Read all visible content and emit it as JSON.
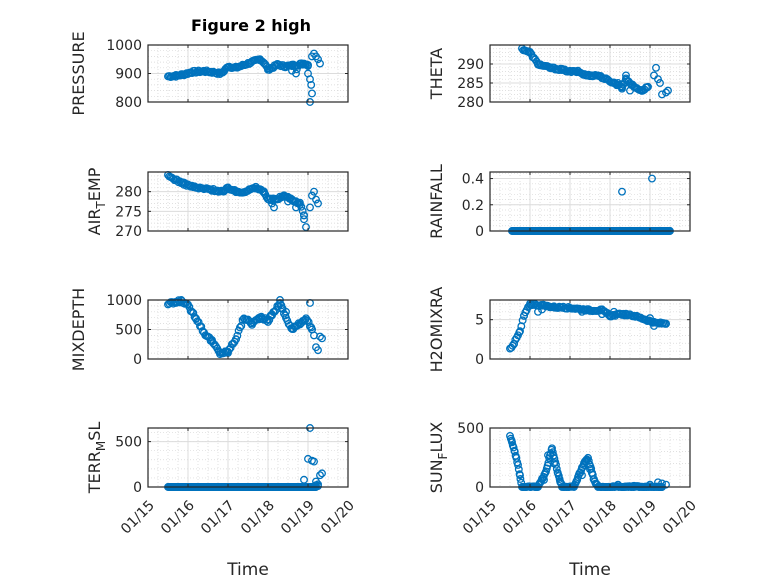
{
  "figure": {
    "title": "Figure 2 high",
    "time_label": "Time",
    "time_ticks": [
      "01/15",
      "01/16",
      "01/17",
      "01/18",
      "01/19",
      "01/20"
    ],
    "marker_color": "#0072BD"
  },
  "chart_data": [
    {
      "type": "scatter",
      "name": "PRESSURE",
      "ylabel": "PRESSURE",
      "ylim": [
        800,
        1000
      ],
      "yticks": [
        800,
        900,
        1000
      ],
      "xlim": [
        0,
        5
      ],
      "grid": true,
      "keys": [
        [
          0.5,
          890
        ],
        [
          0.7,
          892
        ],
        [
          0.9,
          897
        ],
        [
          1.1,
          905
        ],
        [
          1.4,
          908
        ],
        [
          1.6,
          905
        ],
        [
          1.8,
          900
        ],
        [
          1.9,
          908
        ],
        [
          2.0,
          925
        ],
        [
          2.2,
          920
        ],
        [
          2.4,
          930
        ],
        [
          2.6,
          940
        ],
        [
          2.8,
          950
        ],
        [
          2.9,
          938
        ],
        [
          3.0,
          915
        ],
        [
          3.1,
          920
        ],
        [
          3.25,
          932
        ],
        [
          3.4,
          925
        ],
        [
          3.6,
          928
        ],
        [
          3.8,
          932
        ],
        [
          3.9,
          935
        ],
        [
          4.0,
          930
        ]
      ],
      "jitter": 4,
      "step": 0.033,
      "extra": [
        [
          3.6,
          910
        ],
        [
          3.7,
          900
        ],
        [
          3.72,
          915
        ],
        [
          4.1,
          960
        ],
        [
          4.15,
          970
        ],
        [
          4.2,
          960
        ],
        [
          4.25,
          950
        ],
        [
          4.3,
          935
        ],
        [
          4.0,
          900
        ],
        [
          4.05,
          880
        ],
        [
          4.08,
          860
        ],
        [
          4.1,
          830
        ],
        [
          4.05,
          800
        ]
      ]
    },
    {
      "type": "scatter",
      "name": "THETA",
      "ylabel": "THETA",
      "ylim": [
        280,
        295
      ],
      "yticks": [
        280,
        285,
        290
      ],
      "xlim": [
        0,
        5
      ],
      "grid": true,
      "keys": [
        [
          0.8,
          294
        ],
        [
          1.0,
          293
        ],
        [
          1.2,
          290
        ],
        [
          1.5,
          289
        ],
        [
          1.8,
          288.5
        ],
        [
          2.0,
          288
        ],
        [
          2.2,
          288
        ],
        [
          2.4,
          287
        ],
        [
          2.7,
          287
        ],
        [
          2.9,
          286
        ],
        [
          3.1,
          285
        ],
        [
          3.3,
          284
        ],
        [
          3.4,
          286
        ],
        [
          3.6,
          284
        ],
        [
          3.8,
          283
        ],
        [
          3.95,
          284
        ]
      ],
      "jitter": 0.25,
      "step": 0.033,
      "extra": [
        [
          3.2,
          285
        ],
        [
          3.3,
          283.5
        ],
        [
          3.4,
          287
        ],
        [
          3.5,
          283
        ],
        [
          4.1,
          287
        ],
        [
          4.15,
          289
        ],
        [
          4.2,
          286
        ],
        [
          4.25,
          285
        ],
        [
          4.3,
          282
        ],
        [
          4.4,
          282.5
        ],
        [
          4.45,
          283
        ]
      ]
    },
    {
      "type": "scatter",
      "name": "AIR_TEMP",
      "ylabel": "AIR_TEMP",
      "ylim": [
        270,
        285
      ],
      "yticks": [
        270,
        275,
        280
      ],
      "xlim": [
        0,
        5
      ],
      "grid": true,
      "keys": [
        [
          0.5,
          284
        ],
        [
          0.9,
          282
        ],
        [
          1.2,
          281
        ],
        [
          1.6,
          280.5
        ],
        [
          1.9,
          280
        ],
        [
          2.0,
          281
        ],
        [
          2.2,
          280
        ],
        [
          2.4,
          280
        ],
        [
          2.7,
          281
        ],
        [
          2.9,
          280
        ],
        [
          3.0,
          278
        ],
        [
          3.2,
          278
        ],
        [
          3.4,
          279
        ],
        [
          3.6,
          278
        ],
        [
          3.8,
          277
        ],
        [
          3.9,
          274
        ]
      ],
      "jitter": 0.3,
      "step": 0.033,
      "extra": [
        [
          3.1,
          277
        ],
        [
          3.15,
          276
        ],
        [
          3.5,
          277.5
        ],
        [
          3.7,
          276
        ],
        [
          3.9,
          273
        ],
        [
          3.95,
          271
        ],
        [
          4.05,
          276
        ],
        [
          4.1,
          279
        ],
        [
          4.15,
          280
        ],
        [
          4.2,
          278
        ],
        [
          4.25,
          277
        ]
      ]
    },
    {
      "type": "scatter",
      "name": "RAINFALL",
      "ylabel": "RAINFALL",
      "ylim": [
        0,
        0.45
      ],
      "yticks": [
        0,
        0.2,
        0.4
      ],
      "xlim": [
        0,
        5
      ],
      "grid": true,
      "keys": [
        [
          0.55,
          0
        ],
        [
          4.5,
          0
        ]
      ],
      "jitter": 0,
      "step": 0.018,
      "extra": [
        [
          3.3,
          0.3
        ],
        [
          4.05,
          0.4
        ]
      ]
    },
    {
      "type": "scatter",
      "name": "MIXDEPTH",
      "ylabel": "MIXDEPTH",
      "ylim": [
        0,
        1000
      ],
      "yticks": [
        0,
        500,
        1000
      ],
      "xlim": [
        0,
        5
      ],
      "grid": true,
      "keys": [
        [
          0.5,
          930
        ],
        [
          0.7,
          960
        ],
        [
          0.85,
          990
        ],
        [
          1.0,
          900
        ],
        [
          1.2,
          700
        ],
        [
          1.4,
          450
        ],
        [
          1.6,
          300
        ],
        [
          1.8,
          100
        ],
        [
          2.0,
          120
        ],
        [
          2.2,
          350
        ],
        [
          2.4,
          700
        ],
        [
          2.6,
          600
        ],
        [
          2.8,
          700
        ],
        [
          3.0,
          650
        ],
        [
          3.1,
          750
        ],
        [
          3.3,
          950
        ],
        [
          3.45,
          700
        ],
        [
          3.6,
          500
        ],
        [
          3.8,
          600
        ],
        [
          3.95,
          700
        ],
        [
          4.1,
          500
        ]
      ],
      "jitter": 25,
      "step": 0.033,
      "extra": [
        [
          3.3,
          1000
        ],
        [
          3.35,
          850
        ],
        [
          3.45,
          800
        ],
        [
          4.05,
          950
        ],
        [
          4.1,
          500
        ],
        [
          4.15,
          400
        ],
        [
          4.2,
          200
        ],
        [
          4.25,
          150
        ],
        [
          4.3,
          380
        ],
        [
          4.35,
          350
        ]
      ]
    },
    {
      "type": "scatter",
      "name": "H2OMIXRA",
      "ylabel": "H2OMIXRA",
      "ylim": [
        0,
        7.5
      ],
      "yticks": [
        0,
        5
      ],
      "xlim": [
        0,
        5
      ],
      "grid": true,
      "keys": [
        [
          0.5,
          1.3
        ],
        [
          0.6,
          2.0
        ],
        [
          0.75,
          3.5
        ],
        [
          0.85,
          5.5
        ],
        [
          1.0,
          7.0
        ],
        [
          1.3,
          6.8
        ],
        [
          1.6,
          6.6
        ],
        [
          2.0,
          6.5
        ],
        [
          2.5,
          6.2
        ],
        [
          2.8,
          6.2
        ],
        [
          3.0,
          5.5
        ],
        [
          3.3,
          5.7
        ],
        [
          3.6,
          5.5
        ],
        [
          3.9,
          5.0
        ],
        [
          4.1,
          4.6
        ],
        [
          4.4,
          4.5
        ]
      ],
      "jitter": 0.12,
      "step": 0.033,
      "extra": [
        [
          1.2,
          6.0
        ],
        [
          1.3,
          6.3
        ],
        [
          2.3,
          6.0
        ],
        [
          2.8,
          5.7
        ],
        [
          3.1,
          6.0
        ],
        [
          4.0,
          5.2
        ],
        [
          4.1,
          4.2
        ]
      ]
    },
    {
      "type": "scatter",
      "name": "TERR_MSL",
      "ylabel": "TERR_MSL",
      "ylim": [
        0,
        650
      ],
      "yticks": [
        0,
        500
      ],
      "xlim": [
        0,
        5
      ],
      "grid": true,
      "keys": [
        [
          0.5,
          0
        ],
        [
          4.2,
          0
        ]
      ],
      "jitter": 0,
      "step": 0.018,
      "extra": [
        [
          3.9,
          80
        ],
        [
          4.05,
          650
        ],
        [
          4.0,
          310
        ],
        [
          4.1,
          290
        ],
        [
          4.15,
          280
        ],
        [
          4.2,
          60
        ],
        [
          4.25,
          30
        ],
        [
          4.3,
          130
        ],
        [
          4.35,
          150
        ],
        [
          4.25,
          10
        ],
        [
          4.2,
          20
        ]
      ]
    },
    {
      "type": "scatter",
      "name": "SUN_FLUX",
      "ylabel": "SUN_FLUX",
      "ylim": [
        0,
        500
      ],
      "yticks": [
        0,
        500
      ],
      "xlim": [
        0,
        5
      ],
      "grid": true,
      "keys": [
        [
          0.5,
          440
        ],
        [
          0.55,
          380
        ],
        [
          0.62,
          300
        ],
        [
          0.7,
          180
        ],
        [
          0.8,
          0
        ],
        [
          1.2,
          0
        ],
        [
          1.4,
          130
        ],
        [
          1.55,
          330
        ],
        [
          1.7,
          110
        ],
        [
          1.8,
          0
        ],
        [
          2.1,
          0
        ],
        [
          2.35,
          200
        ],
        [
          2.45,
          250
        ],
        [
          2.6,
          60
        ],
        [
          2.7,
          0
        ],
        [
          4.3,
          0
        ]
      ],
      "jitter": 8,
      "step": 0.02,
      "extra": [
        [
          0.75,
          100
        ],
        [
          1.35,
          60
        ],
        [
          1.45,
          270
        ],
        [
          1.6,
          200
        ],
        [
          1.75,
          50
        ],
        [
          2.3,
          100
        ],
        [
          2.5,
          150
        ],
        [
          2.55,
          120
        ],
        [
          3.2,
          20
        ],
        [
          3.6,
          10
        ],
        [
          4.0,
          20
        ],
        [
          4.2,
          40
        ],
        [
          4.3,
          30
        ],
        [
          4.4,
          20
        ]
      ]
    }
  ]
}
